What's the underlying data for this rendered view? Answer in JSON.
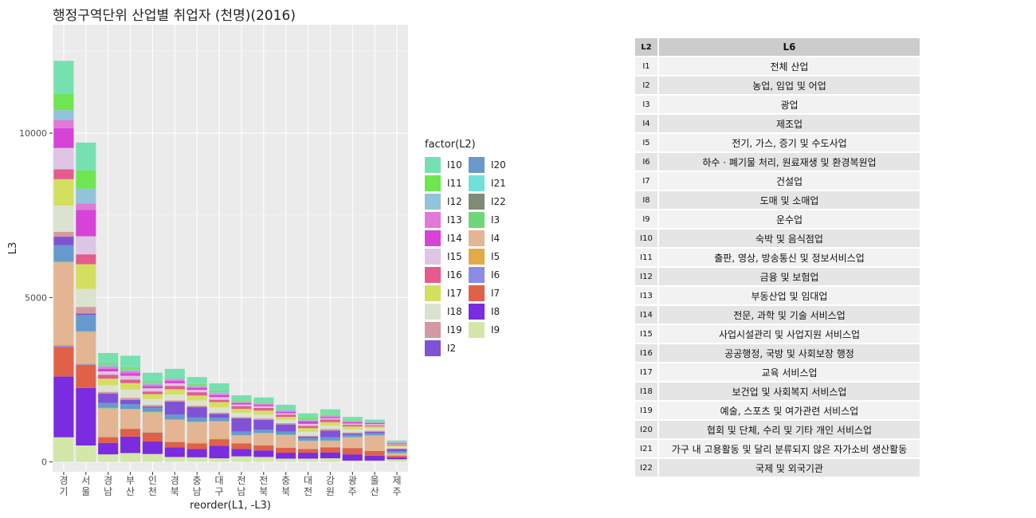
{
  "title": "행정구역단위 산업별 취업자 (천명)(2016)",
  "chart_data": {
    "type": "bar",
    "stacked": true,
    "xlabel": "reorder(L1, -L3)",
    "ylabel": "L3",
    "y_ticks": [
      0,
      5000,
      10000
    ],
    "ylim": [
      -300,
      13300
    ],
    "categories": [
      "경기",
      "서울",
      "경남",
      "부산",
      "인천",
      "경북",
      "충남",
      "대구",
      "전남",
      "전북",
      "충북",
      "대전",
      "강원",
      "광주",
      "울산",
      "제주"
    ],
    "stack_order": [
      "I9",
      "I8",
      "I7",
      "I6",
      "I5",
      "I4",
      "I3",
      "I22",
      "I21",
      "I20",
      "I2",
      "I19",
      "I18",
      "I17",
      "I16",
      "I15",
      "I14",
      "I13",
      "I12",
      "I11",
      "I10"
    ],
    "series": [
      {
        "name": "I9",
        "color": "#d2e7a8",
        "values": [
          750,
          500,
          230,
          270,
          240,
          150,
          140,
          110,
          170,
          150,
          100,
          100,
          110,
          40,
          40,
          80
        ]
      },
      {
        "name": "I8",
        "color": "#7b2be0",
        "values": [
          1850,
          1750,
          350,
          500,
          380,
          290,
          250,
          380,
          220,
          200,
          180,
          180,
          180,
          190,
          150,
          60
        ]
      },
      {
        "name": "I7",
        "color": "#e06148",
        "values": [
          900,
          700,
          170,
          230,
          270,
          160,
          170,
          200,
          170,
          150,
          150,
          110,
          150,
          190,
          140,
          50
        ]
      },
      {
        "name": "I6",
        "color": "#8c8ce6",
        "values": [
          30,
          20,
          8,
          10,
          8,
          7,
          6,
          6,
          6,
          5,
          5,
          5,
          5,
          5,
          4,
          2
        ]
      },
      {
        "name": "I5",
        "color": "#e3aa47",
        "values": [
          40,
          30,
          20,
          15,
          10,
          20,
          20,
          10,
          15,
          12,
          10,
          8,
          10,
          8,
          10,
          5
        ]
      },
      {
        "name": "I4",
        "color": "#e3b592",
        "values": [
          2500,
          950,
          850,
          570,
          600,
          650,
          620,
          520,
          220,
          350,
          370,
          230,
          180,
          310,
          450,
          60
        ]
      },
      {
        "name": "I3",
        "color": "#6ed67a",
        "values": [
          10,
          10,
          10,
          10,
          10,
          10,
          10,
          10,
          10,
          10,
          10,
          10,
          10,
          10,
          10,
          10
        ]
      },
      {
        "name": "I22",
        "color": "#7d8c74",
        "values": [
          5,
          10,
          2,
          2,
          2,
          2,
          2,
          2,
          2,
          2,
          2,
          2,
          2,
          2,
          2,
          2
        ]
      },
      {
        "name": "I21",
        "color": "#72e0d8",
        "values": [
          5,
          5,
          3,
          3,
          3,
          3,
          3,
          3,
          3,
          3,
          3,
          3,
          3,
          3,
          2,
          2
        ]
      },
      {
        "name": "I20",
        "color": "#6899cc",
        "values": [
          500,
          500,
          150,
          150,
          120,
          150,
          130,
          100,
          110,
          100,
          90,
          80,
          100,
          70,
          70,
          50
        ]
      },
      {
        "name": "I2",
        "color": "#8052d6",
        "values": [
          260,
          40,
          290,
          130,
          40,
          390,
          320,
          120,
          400,
          300,
          220,
          40,
          200,
          40,
          40,
          70
        ]
      },
      {
        "name": "I19",
        "color": "#d499a0",
        "values": [
          150,
          200,
          50,
          60,
          50,
          40,
          40,
          40,
          40,
          40,
          40,
          30,
          50,
          30,
          30,
          20
        ]
      },
      {
        "name": "I18",
        "color": "#dbe2d0",
        "values": [
          800,
          550,
          200,
          250,
          180,
          180,
          160,
          160,
          130,
          120,
          100,
          120,
          110,
          90,
          70,
          50
        ]
      },
      {
        "name": "I17",
        "color": "#d4df60",
        "values": [
          800,
          750,
          200,
          200,
          150,
          160,
          150,
          160,
          120,
          120,
          90,
          110,
          100,
          90,
          60,
          40
        ]
      },
      {
        "name": "I16",
        "color": "#e35c8c",
        "values": [
          300,
          300,
          120,
          100,
          80,
          100,
          100,
          70,
          80,
          80,
          70,
          70,
          80,
          50,
          30,
          30
        ]
      },
      {
        "name": "I15",
        "color": "#ddc5e3",
        "values": [
          650,
          550,
          100,
          120,
          100,
          80,
          70,
          80,
          50,
          50,
          40,
          60,
          40,
          40,
          40,
          20
        ]
      },
      {
        "name": "I14",
        "color": "#d643d6",
        "values": [
          600,
          800,
          80,
          80,
          60,
          60,
          60,
          60,
          40,
          40,
          40,
          70,
          30,
          40,
          30,
          20
        ]
      },
      {
        "name": "I13",
        "color": "#e07ad6",
        "values": [
          250,
          200,
          60,
          60,
          50,
          50,
          40,
          40,
          30,
          30,
          30,
          30,
          30,
          20,
          20,
          10
        ]
      },
      {
        "name": "I12",
        "color": "#92c2dc",
        "values": [
          300,
          450,
          70,
          70,
          60,
          50,
          50,
          50,
          40,
          40,
          40,
          40,
          40,
          30,
          20,
          20
        ]
      },
      {
        "name": "I11",
        "color": "#6fe651",
        "values": [
          500,
          550,
          50,
          50,
          40,
          30,
          30,
          40,
          20,
          20,
          20,
          40,
          20,
          20,
          10,
          10
        ]
      },
      {
        "name": "I10",
        "color": "#77e0b0",
        "values": [
          1000,
          850,
          300,
          350,
          260,
          250,
          210,
          230,
          150,
          140,
          130,
          140,
          150,
          90,
          60,
          40
        ]
      }
    ]
  },
  "legend": {
    "title": "factor(L2)",
    "col1": [
      {
        "code": "I10",
        "color": "#77e0b0"
      },
      {
        "code": "I11",
        "color": "#6fe651"
      },
      {
        "code": "I12",
        "color": "#92c2dc"
      },
      {
        "code": "I13",
        "color": "#e07ad6"
      },
      {
        "code": "I14",
        "color": "#d643d6"
      },
      {
        "code": "I15",
        "color": "#ddc5e3"
      },
      {
        "code": "I16",
        "color": "#e35c8c"
      },
      {
        "code": "I17",
        "color": "#d4df60"
      },
      {
        "code": "I18",
        "color": "#dbe2d0"
      },
      {
        "code": "I19",
        "color": "#d499a0"
      },
      {
        "code": "I2",
        "color": "#8052d6"
      }
    ],
    "col2": [
      {
        "code": "I20",
        "color": "#6899cc"
      },
      {
        "code": "I21",
        "color": "#72e0d8"
      },
      {
        "code": "I22",
        "color": "#7d8c74"
      },
      {
        "code": "I3",
        "color": "#6ed67a"
      },
      {
        "code": "I4",
        "color": "#e3b592"
      },
      {
        "code": "I5",
        "color": "#e3aa47"
      },
      {
        "code": "I6",
        "color": "#8c8ce6"
      },
      {
        "code": "I7",
        "color": "#e06148"
      },
      {
        "code": "I8",
        "color": "#7b2be0"
      },
      {
        "code": "I9",
        "color": "#d2e7a8"
      }
    ]
  },
  "lookup_table": {
    "headers": [
      "L2",
      "L6"
    ],
    "rows": [
      [
        "I1",
        "전체 산업"
      ],
      [
        "I2",
        "농업, 임업 및 어업"
      ],
      [
        "I3",
        "광업"
      ],
      [
        "I4",
        "제조업"
      ],
      [
        "I5",
        "전기, 가스, 증기 및 수도사업"
      ],
      [
        "I6",
        "하수 · 폐기물 처리, 원료재생 및 환경복원업"
      ],
      [
        "I7",
        "건설업"
      ],
      [
        "I8",
        "도매 및 소매업"
      ],
      [
        "I9",
        "운수업"
      ],
      [
        "I10",
        "숙박 및 음식점업"
      ],
      [
        "I11",
        "출판, 영상, 방송통신 및 정보서비스업"
      ],
      [
        "I12",
        "금융 및 보험업"
      ],
      [
        "I13",
        "부동산업 및 임대업"
      ],
      [
        "I14",
        "전문, 과학 및 기술 서비스업"
      ],
      [
        "I15",
        "사업시설관리 및 사업지원 서비스업"
      ],
      [
        "I16",
        "공공행정, 국방 및 사회보장 행정"
      ],
      [
        "I17",
        "교육 서비스업"
      ],
      [
        "I18",
        "보건업 및 사회복지 서비스업"
      ],
      [
        "I19",
        "예술, 스포츠 및 여가관련 서비스업"
      ],
      [
        "I20",
        "협회 및 단체, 수리  및 기타 개인 서비스업"
      ],
      [
        "I21",
        "가구 내 고용활동 및 달리 분류되지 않은 자가소비 생산활동"
      ],
      [
        "I22",
        "국제 및 외국기관"
      ]
    ]
  }
}
